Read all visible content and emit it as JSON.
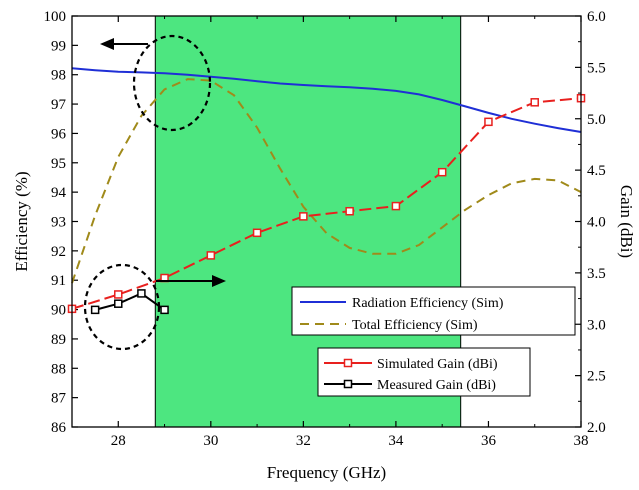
{
  "chart_data": {
    "type": "line",
    "title": "",
    "xlabel": "Frequency (GHz)",
    "ylabel_left": "Efficiency (%)",
    "ylabel_right": "Gain (dBi)",
    "xlim": [
      27,
      38
    ],
    "ylim_left": [
      86,
      100
    ],
    "ylim_right": [
      2.0,
      6.0
    ],
    "x_ticks": [
      28,
      30,
      32,
      34,
      36,
      38
    ],
    "y_left_ticks": [
      86,
      87,
      88,
      89,
      90,
      91,
      92,
      93,
      94,
      95,
      96,
      97,
      98,
      99,
      100
    ],
    "y_right_ticks": [
      "2.0",
      "2.5",
      "3.0",
      "3.5",
      "4.0",
      "4.5",
      "5.0",
      "5.5",
      "6.0"
    ],
    "grid": false,
    "highlight_band": {
      "x_from": 28.8,
      "x_to": 35.4,
      "color": "#4de680"
    },
    "series": [
      {
        "name": "Radiation Efficiency (Sim)",
        "axis": "left",
        "color": "#1f2fd6",
        "style": "solid",
        "x": [
          27,
          27.5,
          28,
          28.5,
          29,
          29.5,
          30,
          30.5,
          31,
          31.5,
          32,
          32.5,
          33,
          33.5,
          34,
          34.5,
          35,
          35.5,
          36,
          36.5,
          37,
          37.5,
          38
        ],
        "y": [
          98.22,
          98.15,
          98.1,
          98.08,
          98.05,
          98.0,
          97.93,
          97.86,
          97.78,
          97.7,
          97.65,
          97.61,
          97.57,
          97.52,
          97.45,
          97.33,
          97.14,
          96.92,
          96.7,
          96.5,
          96.33,
          96.18,
          96.05
        ]
      },
      {
        "name": "Total Efficiency (Sim)",
        "axis": "left",
        "color": "#a08a1a",
        "style": "dashed",
        "x": [
          27,
          27.5,
          28,
          28.5,
          29,
          29.5,
          30,
          30.5,
          31,
          31.5,
          32,
          32.5,
          33,
          33.5,
          34,
          34.5,
          35,
          35.5,
          36,
          36.5,
          37,
          37.5,
          38
        ],
        "y": [
          90.9,
          93.2,
          95.2,
          96.6,
          97.5,
          97.85,
          97.8,
          97.3,
          96.2,
          94.8,
          93.5,
          92.6,
          92.1,
          91.9,
          91.9,
          92.2,
          92.8,
          93.4,
          93.9,
          94.3,
          94.45,
          94.4,
          94.0
        ]
      },
      {
        "name": "Simulated Gain (dBi)",
        "axis": "right",
        "color": "#e8201e",
        "style": "dashed-markers",
        "x": [
          27,
          28,
          29,
          30,
          31,
          32,
          33,
          34,
          35,
          36,
          37,
          38
        ],
        "y": [
          3.15,
          3.29,
          3.45,
          3.67,
          3.89,
          4.05,
          4.1,
          4.15,
          4.48,
          4.97,
          5.16,
          5.2
        ]
      },
      {
        "name": "Measured Gain (dBi)",
        "axis": "right",
        "color": "#000000",
        "style": "solid-markers",
        "x": [
          27.5,
          28,
          28.5,
          29
        ],
        "y": [
          3.14,
          3.2,
          3.3,
          3.14
        ]
      }
    ],
    "legend_1": [
      "Radiation Efficiency (Sim)",
      "Total Efficiency (Sim)"
    ],
    "legend_2": [
      "Simulated Gain (dBi)",
      "Measured Gain (dBi)"
    ],
    "legend_placement": "bottom-right"
  }
}
